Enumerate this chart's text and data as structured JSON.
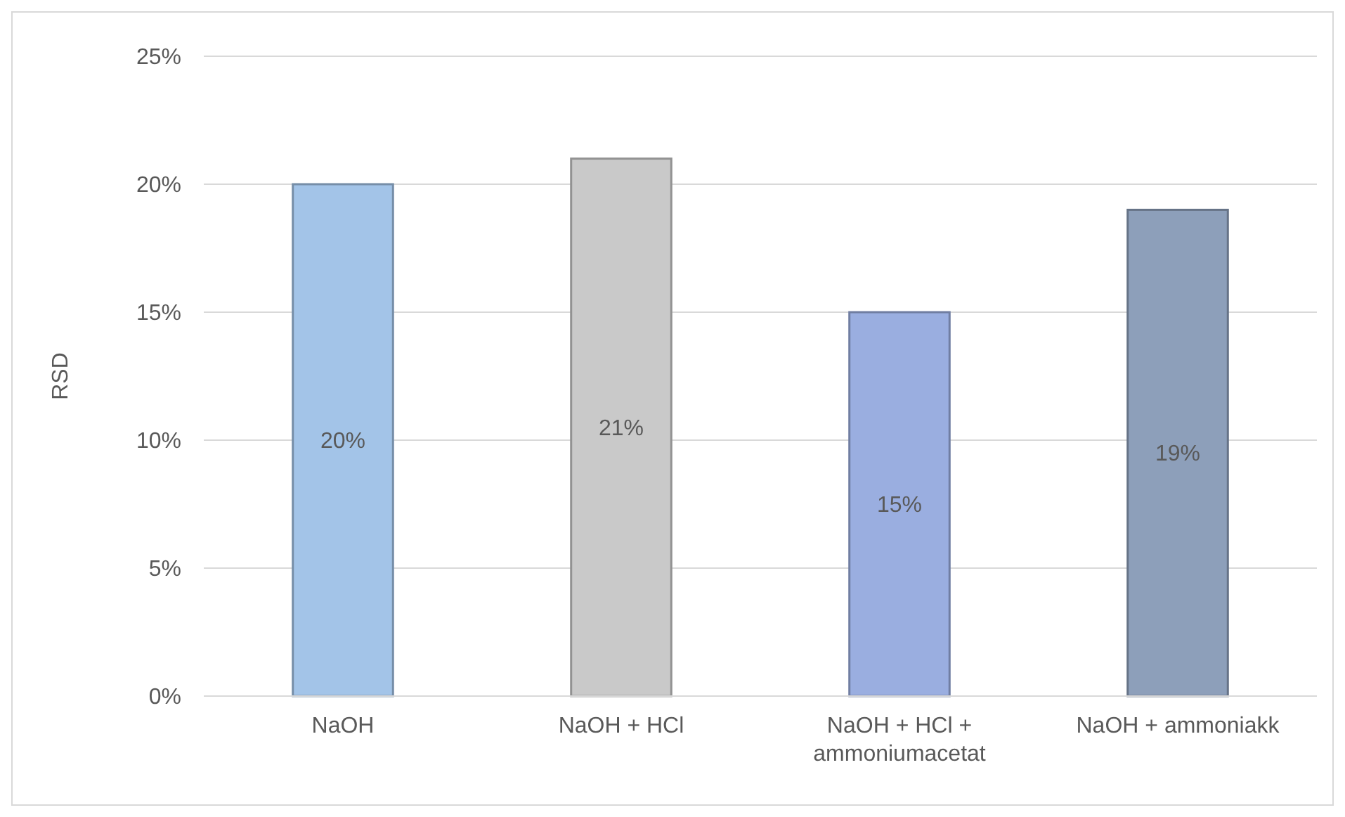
{
  "chart_data": {
    "type": "bar",
    "ylabel": "RSD",
    "categories": [
      "NaOH",
      "NaOH + HCl",
      "NaOH + HCl + ammoniumacetat",
      "NaOH + ammoniakk"
    ],
    "values": [
      20,
      21,
      15,
      19
    ],
    "colors": [
      "#a3c4e8",
      "#c9c9c9",
      "#9aaee0",
      "#8d9fba"
    ],
    "value_labels": [
      "20%",
      "21%",
      "15%",
      "19%"
    ],
    "ylim": [
      0,
      25
    ],
    "yticks": [
      {
        "value": 0,
        "label": "0%"
      },
      {
        "value": 5,
        "label": "5%"
      },
      {
        "value": 10,
        "label": "10%"
      },
      {
        "value": 15,
        "label": "15%"
      },
      {
        "value": 20,
        "label": "20%"
      },
      {
        "value": 25,
        "label": "25%"
      }
    ],
    "grid": "y"
  }
}
